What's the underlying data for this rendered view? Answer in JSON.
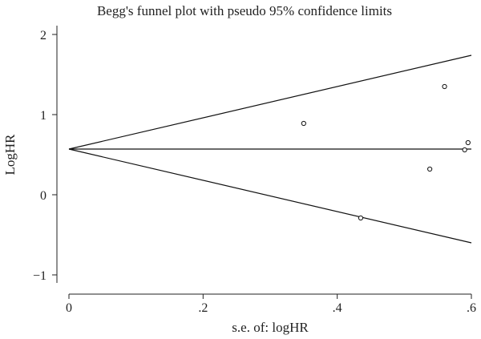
{
  "chart_data": {
    "type": "scatter",
    "title": "Begg's funnel plot with pseudo 95% confidence limits",
    "xlabel": "s.e. of: logHR",
    "ylabel": "LogHR",
    "xlim": [
      0,
      0.6
    ],
    "ylim": [
      -1,
      2
    ],
    "xticks": [
      0,
      0.2,
      0.4,
      0.6
    ],
    "xtick_labels": [
      "0",
      ".2",
      ".4",
      ".6"
    ],
    "yticks": [
      -1,
      0,
      1,
      2
    ],
    "ytick_labels": [
      "−1",
      "0",
      "1",
      "2"
    ],
    "grid": false,
    "pooled_estimate": 0.57,
    "limit_lines": {
      "upper": [
        [
          0,
          0.57
        ],
        [
          0.6,
          1.74
        ]
      ],
      "lower": [
        [
          0,
          0.57
        ],
        [
          0.6,
          -0.6
        ]
      ]
    },
    "points": [
      {
        "x": 0.35,
        "y": 0.89
      },
      {
        "x": 0.435,
        "y": -0.29
      },
      {
        "x": 0.538,
        "y": 0.32
      },
      {
        "x": 0.56,
        "y": 1.35
      },
      {
        "x": 0.59,
        "y": 0.56
      },
      {
        "x": 0.595,
        "y": 0.65
      }
    ]
  }
}
